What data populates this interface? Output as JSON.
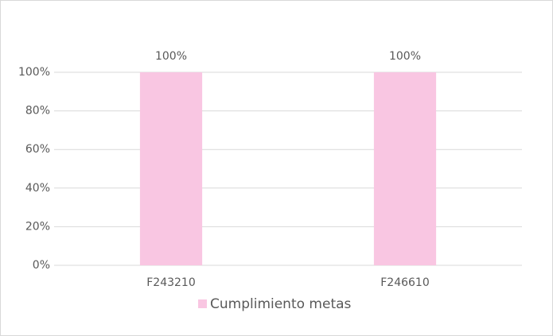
{
  "chart_data": {
    "type": "bar",
    "categories": [
      "F243210",
      "F246610"
    ],
    "series": [
      {
        "name": "Cumplimiento metas",
        "color": "#f9c6e2",
        "values": [
          100,
          100
        ],
        "value_labels": [
          "100%",
          "100%"
        ]
      }
    ],
    "ylim": [
      0,
      100
    ],
    "yticks": [
      {
        "value": 0,
        "label": "0%"
      },
      {
        "value": 20,
        "label": "20%"
      },
      {
        "value": 40,
        "label": "40%"
      },
      {
        "value": 60,
        "label": "60%"
      },
      {
        "value": 80,
        "label": "80%"
      },
      {
        "value": 100,
        "label": "100%"
      }
    ],
    "grid": true,
    "legend": "bottom"
  }
}
